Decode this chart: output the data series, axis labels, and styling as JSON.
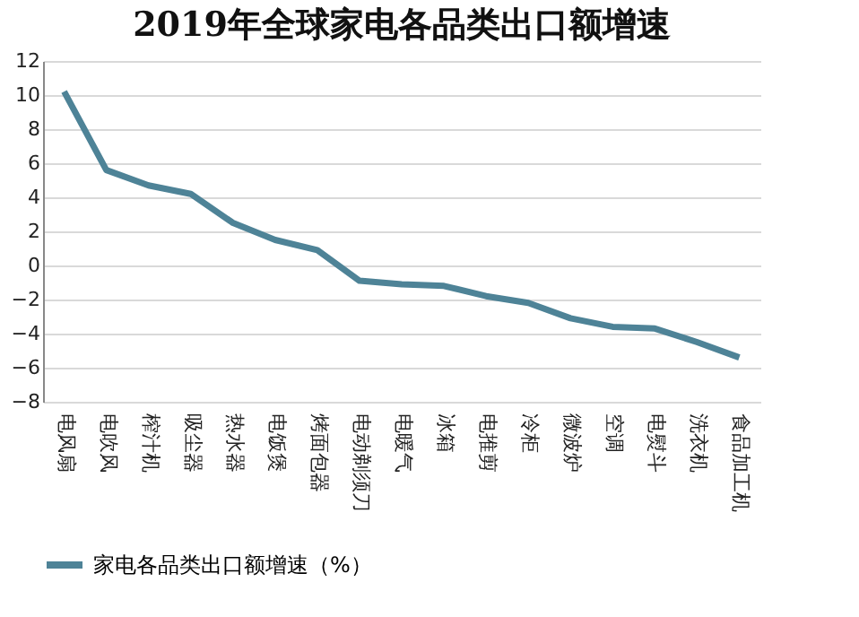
{
  "chart_data": {
    "type": "line",
    "title": "2019年全球家电各品类出口额增速",
    "categories": [
      "电风扇",
      "电吹风",
      "榨汁机",
      "吸尘器",
      "热水器",
      "电饭煲",
      "烤面包器",
      "电动剃须刀",
      "电暖气",
      "冰箱",
      "电推剪",
      "冷柜",
      "微波炉",
      "空调",
      "电熨斗",
      "洗衣机",
      "食品加工机"
    ],
    "series": [
      {
        "name": "家电各品类出口额增速（%）",
        "color": "#4e8397",
        "values": [
          10.2,
          5.6,
          4.7,
          4.2,
          2.5,
          1.5,
          0.9,
          -0.9,
          -1.1,
          -1.2,
          -1.8,
          -2.2,
          -3.1,
          -3.6,
          -3.7,
          -4.5,
          -5.4
        ]
      }
    ],
    "ylim": [
      -8,
      12
    ],
    "yticks": [
      -8,
      -6,
      -4,
      -2,
      0,
      2,
      4,
      6,
      8,
      10,
      12
    ],
    "grid": "y",
    "legend": "bottom",
    "marker": "none",
    "line_style": "solid"
  }
}
